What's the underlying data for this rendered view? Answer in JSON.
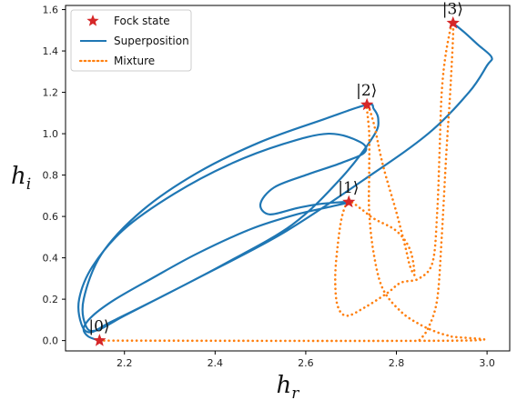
{
  "chart_data": {
    "type": "line",
    "xlabel": "h_r",
    "ylabel": "h_i",
    "xlim": [
      2.07,
      3.05
    ],
    "ylim": [
      -0.05,
      1.62
    ],
    "xticks": [
      "2.2",
      "2.4",
      "2.6",
      "2.8",
      "3.0"
    ],
    "yticks": [
      "0.0",
      "0.2",
      "0.4",
      "0.6",
      "0.8",
      "1.0",
      "1.2",
      "1.4",
      "1.6"
    ],
    "legend": {
      "placement": "top-left",
      "entries": [
        "Fock state",
        "Superposition",
        "Mixture"
      ]
    },
    "colors": {
      "fock": "#d62728",
      "superposition": "#1f77b4",
      "mixture": "#ff7f0e"
    },
    "fock_states": [
      {
        "label": "|0⟩",
        "x": 2.145,
        "y": 0.0
      },
      {
        "label": "|1⟩",
        "x": 2.695,
        "y": 0.67
      },
      {
        "label": "|2⟩",
        "x": 2.735,
        "y": 1.14
      },
      {
        "label": "|3⟩",
        "x": 2.925,
        "y": 1.535
      }
    ],
    "series": [
      {
        "name": "Superposition",
        "style": "solid",
        "points": [
          [
            2.145,
            0.0
          ],
          [
            2.12,
            0.02
          ],
          [
            2.11,
            0.06
          ],
          [
            2.13,
            0.12
          ],
          [
            2.18,
            0.2
          ],
          [
            2.26,
            0.3
          ],
          [
            2.36,
            0.42
          ],
          [
            2.48,
            0.54
          ],
          [
            2.58,
            0.61
          ],
          [
            2.65,
            0.645
          ],
          [
            2.695,
            0.67
          ],
          [
            2.63,
            0.66
          ],
          [
            2.58,
            0.64
          ],
          [
            2.52,
            0.61
          ],
          [
            2.5,
            0.66
          ],
          [
            2.53,
            0.74
          ],
          [
            2.6,
            0.8
          ],
          [
            2.68,
            0.86
          ],
          [
            2.73,
            0.91
          ],
          [
            2.72,
            0.96
          ],
          [
            2.65,
            1.0
          ],
          [
            2.55,
            0.95
          ],
          [
            2.43,
            0.85
          ],
          [
            2.31,
            0.71
          ],
          [
            2.2,
            0.54
          ],
          [
            2.13,
            0.36
          ],
          [
            2.1,
            0.2
          ],
          [
            2.105,
            0.08
          ],
          [
            2.125,
            0.04
          ],
          [
            2.17,
            0.09
          ],
          [
            2.28,
            0.21
          ],
          [
            2.42,
            0.37
          ],
          [
            2.57,
            0.56
          ],
          [
            2.68,
            0.79
          ],
          [
            2.75,
            0.99
          ],
          [
            2.76,
            1.07
          ],
          [
            2.75,
            1.12
          ],
          [
            2.735,
            1.14
          ],
          [
            2.64,
            1.07
          ],
          [
            2.5,
            0.96
          ],
          [
            2.36,
            0.81
          ],
          [
            2.24,
            0.63
          ],
          [
            2.15,
            0.42
          ],
          [
            2.11,
            0.2
          ],
          [
            2.115,
            0.07
          ],
          [
            2.14,
            0.05
          ],
          [
            2.2,
            0.12
          ],
          [
            2.36,
            0.3
          ],
          [
            2.55,
            0.52
          ],
          [
            2.73,
            0.78
          ],
          [
            2.87,
            1.0
          ],
          [
            2.96,
            1.2
          ],
          [
            3.0,
            1.33
          ],
          [
            3.01,
            1.37
          ],
          [
            2.98,
            1.43
          ],
          [
            2.95,
            1.49
          ],
          [
            2.925,
            1.535
          ]
        ]
      },
      {
        "name": "Mixture",
        "style": "dotted",
        "points": [
          [
            2.145,
            0.0
          ],
          [
            2.94,
            0.0
          ],
          [
            2.92,
            0.02
          ],
          [
            2.89,
            0.04
          ],
          [
            2.85,
            0.08
          ],
          [
            2.81,
            0.14
          ],
          [
            2.77,
            0.25
          ],
          [
            2.75,
            0.42
          ],
          [
            2.74,
            0.62
          ],
          [
            2.74,
            0.82
          ],
          [
            2.74,
            1.0
          ],
          [
            2.735,
            1.14
          ],
          [
            2.75,
            1.05
          ],
          [
            2.77,
            0.85
          ],
          [
            2.8,
            0.62
          ],
          [
            2.82,
            0.45
          ],
          [
            2.83,
            0.36
          ],
          [
            2.84,
            0.32
          ],
          [
            2.83,
            0.44
          ],
          [
            2.8,
            0.53
          ],
          [
            2.75,
            0.59
          ],
          [
            2.72,
            0.64
          ],
          [
            2.695,
            0.67
          ],
          [
            2.68,
            0.6
          ],
          [
            2.67,
            0.45
          ],
          [
            2.665,
            0.3
          ],
          [
            2.67,
            0.17
          ],
          [
            2.69,
            0.12
          ],
          [
            2.73,
            0.16
          ],
          [
            2.78,
            0.23
          ],
          [
            2.81,
            0.28
          ],
          [
            2.85,
            0.3
          ],
          [
            2.88,
            0.38
          ],
          [
            2.89,
            0.62
          ],
          [
            2.895,
            0.9
          ],
          [
            2.9,
            1.2
          ],
          [
            2.91,
            1.4
          ],
          [
            2.925,
            1.535
          ],
          [
            2.92,
            1.25
          ],
          [
            2.91,
            0.9
          ],
          [
            2.9,
            0.5
          ],
          [
            2.89,
            0.2
          ],
          [
            2.87,
            0.06
          ],
          [
            2.85,
            0.0
          ]
        ]
      }
    ]
  }
}
